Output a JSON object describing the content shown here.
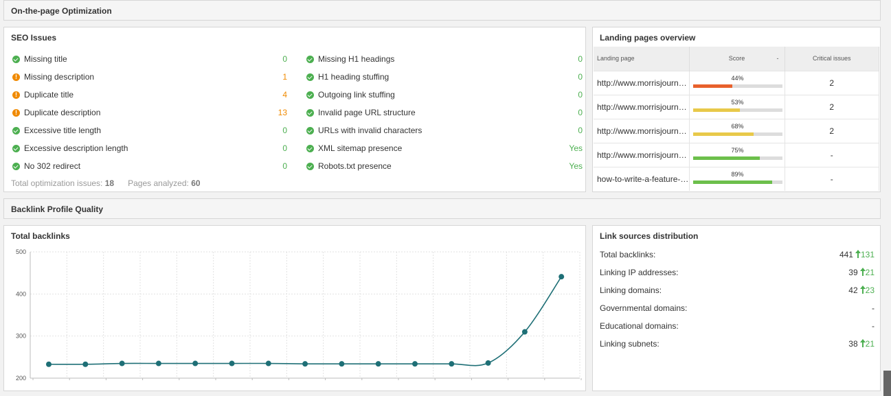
{
  "sections": {
    "onpage": "On-the-page Optimization",
    "backlink": "Backlink Profile Quality"
  },
  "seo": {
    "title": "SEO Issues",
    "left": [
      {
        "label": "Missing title",
        "value": "0",
        "status": "ok"
      },
      {
        "label": "Missing description",
        "value": "1",
        "status": "warn"
      },
      {
        "label": "Duplicate title",
        "value": "4",
        "status": "warn"
      },
      {
        "label": "Duplicate description",
        "value": "13",
        "status": "warn"
      },
      {
        "label": "Excessive title length",
        "value": "0",
        "status": "ok"
      },
      {
        "label": "Excessive description length",
        "value": "0",
        "status": "ok"
      },
      {
        "label": "No 302 redirect",
        "value": "0",
        "status": "ok"
      }
    ],
    "right": [
      {
        "label": "Missing H1 headings",
        "value": "0",
        "status": "ok"
      },
      {
        "label": "H1 heading stuffing",
        "value": "0",
        "status": "ok"
      },
      {
        "label": "Outgoing link stuffing",
        "value": "0",
        "status": "ok"
      },
      {
        "label": "Invalid page URL structure",
        "value": "0",
        "status": "ok"
      },
      {
        "label": "URLs with invalid characters",
        "value": "0",
        "status": "ok"
      },
      {
        "label": "XML sitemap presence",
        "value": "Yes",
        "status": "ok"
      },
      {
        "label": "Robots.txt presence",
        "value": "Yes",
        "status": "ok"
      }
    ],
    "total_label": "Total optimization issues:",
    "total_value": "18",
    "pages_label": "Pages analyzed:",
    "pages_value": "60"
  },
  "landing": {
    "title": "Landing pages overview",
    "headers": {
      "page": "Landing page",
      "score": "Score",
      "sort": "-",
      "critical": "Critical issues"
    },
    "rows": [
      {
        "url": "http://www.morrisjournalism.com/",
        "score": 44,
        "score_label": "44%",
        "color": "#e8612c",
        "critical": "2"
      },
      {
        "url": "http://www.morrisjournalism.com/",
        "score": 53,
        "score_label": "53%",
        "color": "#e8c94a",
        "critical": "2"
      },
      {
        "url": "http://www.morrisjournalism.com/",
        "score": 68,
        "score_label": "68%",
        "color": "#e8c94a",
        "critical": "2"
      },
      {
        "url": "http://www.morrisjournalism.com/",
        "score": 75,
        "score_label": "75%",
        "color": "#6cbf4b",
        "critical": "-"
      },
      {
        "url": "how-to-write-a-feature-article",
        "score": 89,
        "score_label": "89%",
        "color": "#6cbf4b",
        "critical": "-"
      }
    ]
  },
  "backlinks_chart": {
    "title": "Total backlinks"
  },
  "chart_data": {
    "type": "line",
    "title": "Total backlinks",
    "xlabel": "",
    "ylabel": "",
    "ylim": [
      200,
      500
    ],
    "yticks": [
      200,
      300,
      400,
      500
    ],
    "series": [
      {
        "values": [
          233,
          233,
          235,
          235,
          235,
          235,
          235,
          234,
          234,
          234,
          234,
          234,
          236,
          310,
          441
        ]
      }
    ],
    "line_color": "#1e6f76",
    "grid": true
  },
  "link_sources": {
    "title": "Link sources distribution",
    "rows": [
      {
        "label": "Total backlinks:",
        "value": "441",
        "delta": "131"
      },
      {
        "label": "Linking IP addresses:",
        "value": "39",
        "delta": "21"
      },
      {
        "label": "Linking domains:",
        "value": "42",
        "delta": "23"
      },
      {
        "label": "Governmental domains:",
        "value": "-",
        "delta": ""
      },
      {
        "label": "Educational domains:",
        "value": "-",
        "delta": ""
      },
      {
        "label": "Linking subnets:",
        "value": "38",
        "delta": "21"
      }
    ]
  }
}
